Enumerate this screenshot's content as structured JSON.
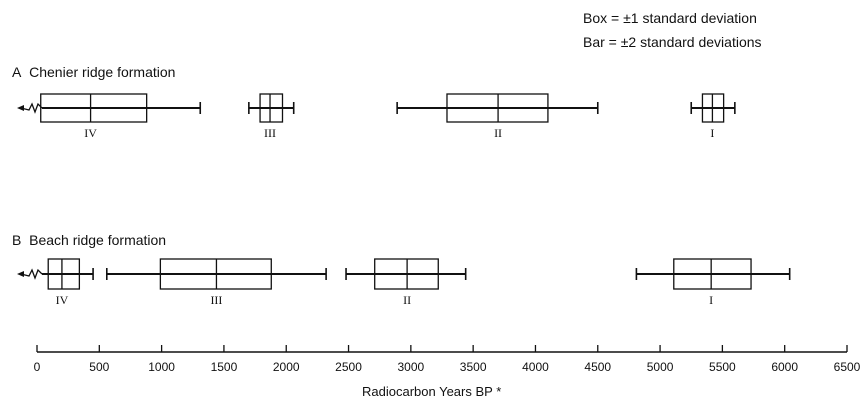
{
  "legend": {
    "box_label": "Box =",
    "box_value": "±1 standard deviation",
    "bar_label": "Bar =",
    "bar_value": "±2 standard deviations"
  },
  "chart_data": {
    "type": "box",
    "xlabel": "Radiocarbon Years BP *",
    "xlim": [
      0,
      6500
    ],
    "xticks": [
      0,
      500,
      1000,
      1500,
      2000,
      2500,
      3000,
      3500,
      4000,
      4500,
      5000,
      5500,
      6000,
      6500
    ],
    "panels": [
      {
        "letter": "A",
        "title": "Chenier ridge formation",
        "groups": [
          {
            "label": "IV",
            "mean": 430,
            "sd1": [
              30,
              880
            ],
            "sd2": [
              -160,
              1310
            ],
            "open_left": true
          },
          {
            "label": "III",
            "mean": 1870,
            "sd1": [
              1790,
              1970
            ],
            "sd2": [
              1700,
              2060
            ],
            "open_left": false
          },
          {
            "label": "II",
            "mean": 3700,
            "sd1": [
              3290,
              4100
            ],
            "sd2": [
              2890,
              4500
            ],
            "open_left": false
          },
          {
            "label": "I",
            "mean": 5420,
            "sd1": [
              5340,
              5510
            ],
            "sd2": [
              5250,
              5600
            ],
            "open_left": false
          }
        ]
      },
      {
        "letter": "B",
        "title": "Beach ridge formation",
        "groups": [
          {
            "label": "IV",
            "mean": 200,
            "sd1": [
              90,
              340
            ],
            "sd2": [
              -160,
              450
            ],
            "open_left": true
          },
          {
            "label": "III",
            "mean": 1440,
            "sd1": [
              990,
              1880
            ],
            "sd2": [
              560,
              2320
            ],
            "open_left": false
          },
          {
            "label": "II",
            "mean": 2970,
            "sd1": [
              2710,
              3220
            ],
            "sd2": [
              2480,
              3440
            ],
            "open_left": false
          },
          {
            "label": "I",
            "mean": 5410,
            "sd1": [
              5110,
              5730
            ],
            "sd2": [
              4810,
              6040
            ],
            "open_left": false
          }
        ]
      }
    ]
  }
}
